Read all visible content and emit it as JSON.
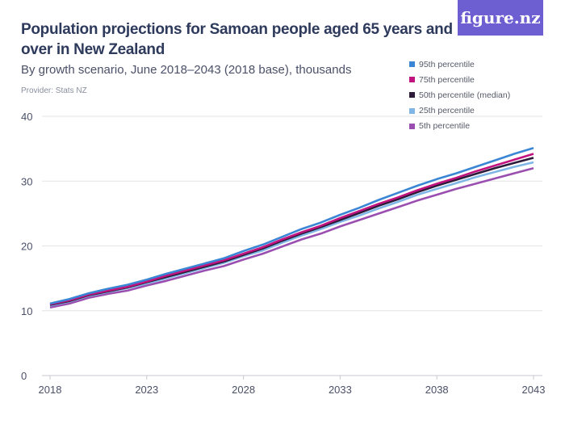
{
  "header": {
    "title": "Population projections for Samoan people aged 65 years and over in New Zealand",
    "subtitle": "By growth scenario, June 2018–2043 (2018 base), thousands",
    "provider": "Provider: Stats NZ",
    "logo": "figure.nz",
    "logo_color": "#6d5fd1"
  },
  "chart_data": {
    "type": "line",
    "title": "Population projections for Samoan people aged 65 years and over in New Zealand",
    "subtitle": "By growth scenario, June 2018–2043 (2018 base), thousands",
    "xlabel": "",
    "ylabel": "",
    "ylim": [
      0,
      40
    ],
    "xlim": [
      2018,
      2043
    ],
    "yticks": [
      "0",
      "10",
      "20",
      "30",
      "40"
    ],
    "xticks": [
      "2018",
      "2023",
      "2028",
      "2033",
      "2038",
      "2043"
    ],
    "grid": true,
    "legend": "top-right",
    "x": [
      2018,
      2019,
      2020,
      2021,
      2022,
      2023,
      2024,
      2025,
      2026,
      2027,
      2028,
      2029,
      2030,
      2031,
      2032,
      2033,
      2034,
      2035,
      2036,
      2037,
      2038,
      2039,
      2040,
      2041,
      2042,
      2043
    ],
    "series": [
      {
        "name": "95th percentile",
        "color": "#3b86d4",
        "values": [
          11.1,
          11.8,
          12.7,
          13.4,
          14.0,
          14.8,
          15.7,
          16.5,
          17.3,
          18.1,
          19.2,
          20.2,
          21.4,
          22.6,
          23.6,
          24.8,
          25.9,
          27.1,
          28.2,
          29.3,
          30.3,
          31.2,
          32.2,
          33.2,
          34.2,
          35.1
        ]
      },
      {
        "name": "75th percentile",
        "color": "#c0137f",
        "values": [
          11.0,
          11.6,
          12.5,
          13.1,
          13.7,
          14.5,
          15.4,
          16.2,
          17.0,
          17.8,
          18.8,
          19.8,
          21.0,
          22.1,
          23.1,
          24.3,
          25.4,
          26.5,
          27.5,
          28.6,
          29.6,
          30.5,
          31.5,
          32.4,
          33.3,
          34.2
        ]
      },
      {
        "name": "50th percentile (median)",
        "color": "#2d1b3a",
        "values": [
          10.9,
          11.5,
          12.4,
          13.0,
          13.6,
          14.4,
          15.2,
          16.0,
          16.8,
          17.6,
          18.6,
          19.6,
          20.8,
          21.9,
          22.9,
          24.0,
          25.1,
          26.2,
          27.2,
          28.3,
          29.3,
          30.2,
          31.1,
          32.0,
          32.8,
          33.6
        ]
      },
      {
        "name": "25th percentile",
        "color": "#7fb6e6",
        "values": [
          10.8,
          11.4,
          12.3,
          12.9,
          13.5,
          14.2,
          15.0,
          15.8,
          16.6,
          17.4,
          18.4,
          19.3,
          20.5,
          21.6,
          22.6,
          23.7,
          24.7,
          25.8,
          26.8,
          27.9,
          28.8,
          29.7,
          30.6,
          31.4,
          32.2,
          32.9
        ]
      },
      {
        "name": "5th percentile",
        "color": "#9a4fb0",
        "values": [
          10.5,
          11.1,
          12.0,
          12.6,
          13.1,
          13.9,
          14.6,
          15.4,
          16.2,
          16.9,
          17.9,
          18.8,
          19.9,
          21.0,
          21.9,
          23.0,
          24.0,
          25.0,
          26.0,
          27.0,
          27.9,
          28.8,
          29.6,
          30.4,
          31.2,
          32.0
        ]
      }
    ]
  }
}
